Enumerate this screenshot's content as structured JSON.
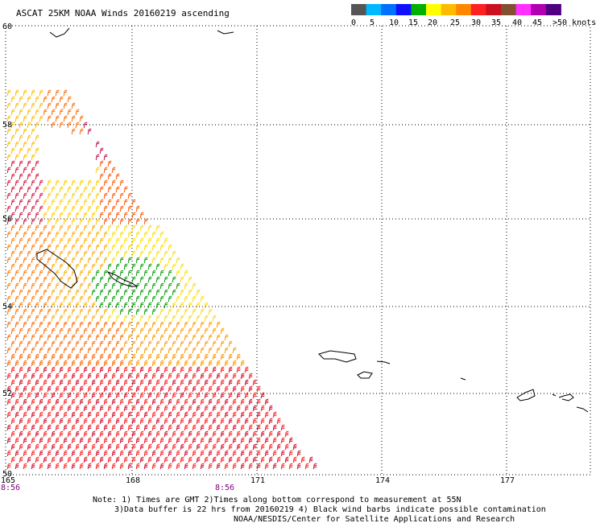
{
  "title": "ASCAT 25KM NOAA Winds 20160219 ascending",
  "legend": {
    "colors": [
      "#555555",
      "#00b8ff",
      "#0070ff",
      "#1010ff",
      "#00b000",
      "#ffff00",
      "#ffbb00",
      "#ff8800",
      "#ff2020",
      "#cc1020",
      "#805030",
      "#ff30ff",
      "#b000b0",
      "#500080"
    ],
    "labels": [
      "0",
      "5",
      "10",
      "15",
      "20",
      "25",
      "30",
      "35",
      "40",
      "45",
      ">50 knots"
    ]
  },
  "lat_labels": [
    "60",
    "58",
    "56",
    "54",
    "52",
    "50"
  ],
  "lon_labels": [
    "165",
    "168",
    "171",
    "174",
    "177"
  ],
  "time_labels": [
    "8:56",
    "8:56"
  ],
  "notes": [
    "Note: 1) Times are GMT 2)Times along bottom correspond to measurement at 55N",
    "3)Data buffer is 22 hrs from 20160219 4) Black wind barbs indicate possible contamination",
    "NOAA/NESDIS/Center for Satellite Applications and Research"
  ]
}
